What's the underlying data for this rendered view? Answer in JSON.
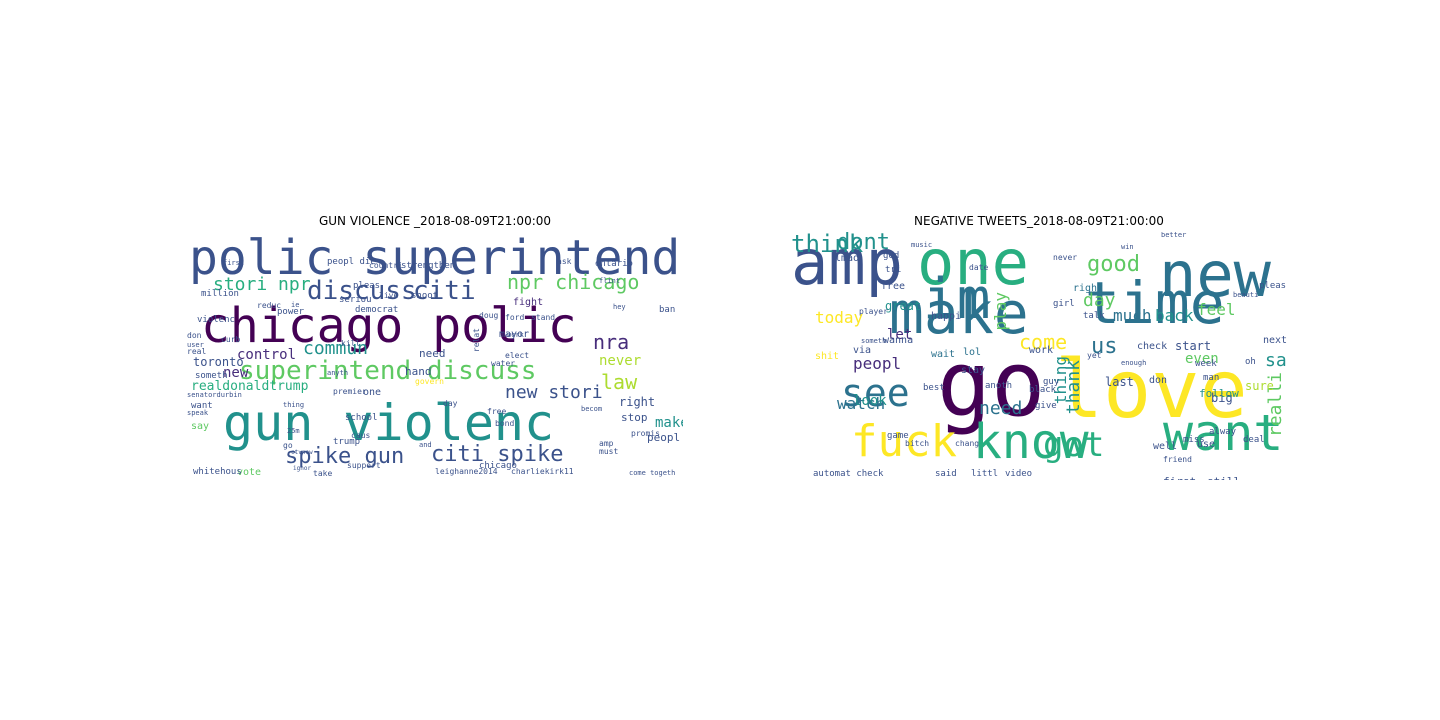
{
  "colors": {
    "deep_purple": "#440154",
    "purple": "#472d7b",
    "indigo": "#3b528b",
    "blue": "#2c728e",
    "teal": "#21918c",
    "sea": "#28ae80",
    "green": "#5ec962",
    "lime": "#addc30",
    "yellow": "#fde725"
  },
  "panels": [
    {
      "title": "GUN VIOLENCE _2018-08-09T21:00:00",
      "words": [
        {
          "t": "polic superintend",
          "c": "indigo"
        },
        {
          "t": "chicago polic",
          "c": "deep_purple"
        },
        {
          "t": "gun violenc",
          "c": "teal"
        },
        {
          "t": "superintend discuss",
          "c": "green"
        },
        {
          "t": "discuss",
          "c": "indigo"
        },
        {
          "t": "citi",
          "c": "indigo"
        },
        {
          "t": "spike gun",
          "c": "indigo"
        },
        {
          "t": "citi spike",
          "c": "indigo"
        },
        {
          "t": "npr chicago",
          "c": "green"
        },
        {
          "t": "stori npr",
          "c": "sea"
        },
        {
          "t": "nra",
          "c": "purple"
        },
        {
          "t": "law",
          "c": "lime"
        },
        {
          "t": "new stori",
          "c": "indigo"
        },
        {
          "t": "commun",
          "c": "teal"
        },
        {
          "t": "control",
          "c": "purple"
        },
        {
          "t": "new",
          "c": "purple"
        },
        {
          "t": "never",
          "c": "lime"
        },
        {
          "t": "make",
          "c": "teal"
        },
        {
          "t": "toronto",
          "c": "indigo"
        },
        {
          "t": "realdonaldtrump",
          "c": "sea"
        },
        {
          "t": "right",
          "c": "indigo"
        },
        {
          "t": "stop",
          "c": "indigo"
        },
        {
          "t": "hand",
          "c": "indigo"
        },
        {
          "t": "need",
          "c": "indigo"
        },
        {
          "t": "fight",
          "c": "purple"
        },
        {
          "t": "mayor",
          "c": "indigo"
        },
        {
          "t": "million",
          "c": "indigo"
        },
        {
          "t": "violenc",
          "c": "indigo"
        },
        {
          "t": "peopl",
          "c": "indigo"
        },
        {
          "t": "someth",
          "c": "indigo"
        },
        {
          "t": "want",
          "c": "indigo"
        },
        {
          "t": "say",
          "c": "green"
        },
        {
          "t": "vote",
          "c": "green"
        },
        {
          "t": "whitehous",
          "c": "indigo"
        },
        {
          "t": "chicago",
          "c": "indigo"
        },
        {
          "t": "leighanne2014",
          "c": "indigo"
        },
        {
          "t": "charliekirk11",
          "c": "indigo"
        },
        {
          "t": "trump",
          "c": "indigo"
        },
        {
          "t": "school",
          "c": "indigo"
        },
        {
          "t": "one",
          "c": "indigo"
        },
        {
          "t": "kill",
          "c": "indigo"
        },
        {
          "t": "anyth",
          "c": "indigo"
        },
        {
          "t": "democrat",
          "c": "indigo"
        },
        {
          "t": "seriou",
          "c": "indigo"
        },
        {
          "t": "strengthen",
          "c": "indigo"
        },
        {
          "t": "countri",
          "c": "indigo"
        },
        {
          "t": "first",
          "c": "indigo"
        },
        {
          "t": "pleas",
          "c": "indigo"
        },
        {
          "t": "shoot",
          "c": "indigo"
        },
        {
          "t": "live",
          "c": "indigo"
        },
        {
          "t": "elect",
          "c": "indigo"
        },
        {
          "t": "premier",
          "c": "indigo"
        },
        {
          "t": "support",
          "c": "indigo"
        },
        {
          "t": "free",
          "c": "indigo"
        },
        {
          "t": "bond",
          "c": "indigo"
        },
        {
          "t": "promis",
          "c": "indigo"
        },
        {
          "t": "must",
          "c": "indigo"
        },
        {
          "t": "ban",
          "c": "indigo"
        },
        {
          "t": "doug",
          "c": "indigo"
        },
        {
          "t": "ford",
          "c": "indigo"
        },
        {
          "t": "stand",
          "c": "indigo"
        },
        {
          "t": "don",
          "c": "indigo"
        },
        {
          "t": "curb",
          "c": "indigo"
        },
        {
          "t": "real",
          "c": "indigo"
        },
        {
          "t": "power",
          "c": "indigo"
        },
        {
          "t": "reduc",
          "c": "indigo"
        },
        {
          "t": "ontario",
          "c": "indigo"
        },
        {
          "t": "take",
          "c": "indigo"
        },
        {
          "t": "amp",
          "c": "indigo"
        },
        {
          "t": "day",
          "c": "indigo"
        },
        {
          "t": "relat",
          "c": "indigo"
        },
        {
          "t": "senatordurbin",
          "c": "indigo"
        },
        {
          "t": "govern",
          "c": "yellow"
        },
        {
          "t": "peopl die",
          "c": "indigo"
        },
        {
          "t": "ask",
          "c": "indigo"
        },
        {
          "t": "go",
          "c": "indigo"
        },
        {
          "t": "caus",
          "c": "indigo"
        },
        {
          "t": "thing",
          "c": "indigo"
        },
        {
          "t": "speak",
          "c": "indigo"
        },
        {
          "t": "water",
          "c": "indigo"
        },
        {
          "t": "work",
          "c": "indigo"
        },
        {
          "t": "hey",
          "c": "indigo"
        },
        {
          "t": "come togeth",
          "c": "indigo"
        },
        {
          "t": "becom",
          "c": "indigo"
        },
        {
          "t": "user",
          "c": "indigo"
        },
        {
          "t": "ie",
          "c": "indigo"
        },
        {
          "t": "25m",
          "c": "indigo"
        },
        {
          "t": "ctvnew",
          "c": "indigo"
        },
        {
          "t": "ignor",
          "c": "indigo"
        },
        {
          "t": "and",
          "c": "indigo"
        },
        {
          "t": "flint",
          "c": "indigo"
        }
      ]
    },
    {
      "title": "NEGATIVE TWEETS_2018-08-09T21:00:00",
      "words": [
        {
          "t": "one",
          "c": "sea"
        },
        {
          "t": "new",
          "c": "blue"
        },
        {
          "t": "make",
          "c": "blue"
        },
        {
          "t": "time",
          "c": "blue"
        },
        {
          "t": "im",
          "c": "blue"
        },
        {
          "t": "go",
          "c": "deep_purple"
        },
        {
          "t": "love",
          "c": "yellow"
        },
        {
          "t": "amp",
          "c": "indigo"
        },
        {
          "t": "fuck",
          "c": "yellow"
        },
        {
          "t": "know",
          "c": "sea"
        },
        {
          "t": "want",
          "c": "sea"
        },
        {
          "t": "see",
          "c": "blue"
        },
        {
          "t": "got",
          "c": "sea"
        },
        {
          "t": "think",
          "c": "teal"
        },
        {
          "t": "dont",
          "c": "teal"
        },
        {
          "t": "good",
          "c": "green"
        },
        {
          "t": "us",
          "c": "blue"
        },
        {
          "t": "come",
          "c": "yellow"
        },
        {
          "t": "day",
          "c": "green"
        },
        {
          "t": "much",
          "c": "blue"
        },
        {
          "t": "back",
          "c": "teal"
        },
        {
          "t": "feel",
          "c": "green"
        },
        {
          "t": "say",
          "c": "teal"
        },
        {
          "t": "watch",
          "c": "blue"
        },
        {
          "t": "need",
          "c": "blue"
        },
        {
          "t": "peopl",
          "c": "purple"
        },
        {
          "t": "look",
          "c": "teal"
        },
        {
          "t": "today",
          "c": "yellow"
        },
        {
          "t": "let",
          "c": "purple"
        },
        {
          "t": "thank",
          "c": "teal"
        },
        {
          "t": "even",
          "c": "green"
        },
        {
          "t": "realli",
          "c": "green"
        },
        {
          "t": "right",
          "c": "blue"
        },
        {
          "t": "play",
          "c": "green"
        },
        {
          "t": "great",
          "c": "teal"
        },
        {
          "t": "free",
          "c": "indigo"
        },
        {
          "t": "lol",
          "c": "blue"
        },
        {
          "t": "wait",
          "c": "blue"
        },
        {
          "t": "thing",
          "c": "teal"
        },
        {
          "t": "last",
          "c": "indigo"
        },
        {
          "t": "don",
          "c": "indigo"
        },
        {
          "t": "man",
          "c": "indigo"
        },
        {
          "t": "big",
          "c": "indigo"
        },
        {
          "t": "sure",
          "c": "lime"
        },
        {
          "t": "follow",
          "c": "teal"
        },
        {
          "t": "start",
          "c": "indigo"
        },
        {
          "t": "next",
          "c": "indigo"
        },
        {
          "t": "first",
          "c": "indigo"
        },
        {
          "t": "still",
          "c": "indigo"
        },
        {
          "t": "take",
          "c": "indigo"
        },
        {
          "t": "well",
          "c": "indigo"
        },
        {
          "t": "use",
          "c": "indigo"
        },
        {
          "t": "year",
          "c": "indigo"
        },
        {
          "t": "work",
          "c": "indigo"
        },
        {
          "t": "wanna",
          "c": "indigo"
        },
        {
          "t": "via",
          "c": "indigo"
        },
        {
          "t": "shit",
          "c": "yellow"
        },
        {
          "t": "best",
          "c": "indigo"
        },
        {
          "t": "stay",
          "c": "indigo"
        },
        {
          "t": "happi",
          "c": "indigo"
        },
        {
          "t": "lmao",
          "c": "indigo"
        },
        {
          "t": "tri",
          "c": "indigo"
        },
        {
          "t": "god",
          "c": "indigo"
        },
        {
          "t": "talk",
          "c": "indigo"
        },
        {
          "t": "check",
          "c": "indigo"
        },
        {
          "t": "week",
          "c": "indigo"
        },
        {
          "t": "pleas",
          "c": "indigo"
        },
        {
          "t": "automat check",
          "c": "indigo"
        },
        {
          "t": "said",
          "c": "indigo"
        },
        {
          "t": "littl",
          "c": "indigo"
        },
        {
          "t": "video",
          "c": "indigo"
        },
        {
          "t": "game",
          "c": "indigo"
        },
        {
          "t": "miss",
          "c": "indigo"
        },
        {
          "t": "alway",
          "c": "indigo"
        },
        {
          "t": "deal",
          "c": "indigo"
        },
        {
          "t": "oh",
          "c": "indigo"
        },
        {
          "t": "girl",
          "c": "indigo"
        },
        {
          "t": "never",
          "c": "indigo"
        },
        {
          "t": "anoth",
          "c": "indigo"
        },
        {
          "t": "black",
          "c": "indigo"
        },
        {
          "t": "give",
          "c": "indigo"
        },
        {
          "t": "friend",
          "c": "indigo"
        },
        {
          "t": "yet",
          "c": "indigo"
        },
        {
          "t": "enough",
          "c": "indigo"
        },
        {
          "t": "someth",
          "c": "indigo"
        },
        {
          "t": "player",
          "c": "indigo"
        },
        {
          "t": "bitch",
          "c": "indigo"
        },
        {
          "t": "chang",
          "c": "indigo"
        },
        {
          "t": "music",
          "c": "indigo"
        },
        {
          "t": "date",
          "c": "indigo"
        },
        {
          "t": "win",
          "c": "indigo"
        },
        {
          "t": "better",
          "c": "indigo"
        },
        {
          "t": "beauti",
          "c": "indigo"
        },
        {
          "t": "guy",
          "c": "indigo"
        }
      ]
    }
  ]
}
